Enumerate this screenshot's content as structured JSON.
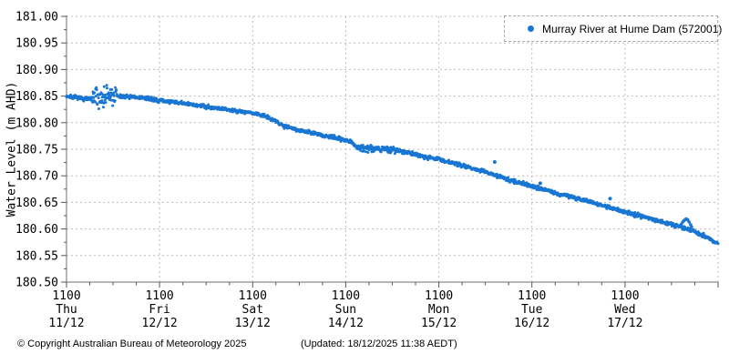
{
  "footer": {
    "copyright": "© Copyright Australian Bureau of Meteorology 2025",
    "updated": "(Updated: 18/12/2025 11:38 AEDT)"
  },
  "colors": {
    "data": "#1976D2",
    "grid": "#bdbdbd",
    "axis": "#6e6e6e",
    "tick": "#555555",
    "text": "#000000"
  },
  "chart_data": {
    "type": "scatter",
    "title": "",
    "ylabel": "Water Level (m AHD)",
    "xlabel": "",
    "grid": true,
    "legend_position": "top-right",
    "ylim": [
      180.5,
      181.0
    ],
    "y_major_step": 0.05,
    "y_minor_step": 0.025,
    "y_tick_labels": [
      "181.00",
      "180.95",
      "180.90",
      "180.85",
      "180.80",
      "180.75",
      "180.70",
      "180.65",
      "180.60",
      "180.55",
      "180.50"
    ],
    "x_axis": {
      "span_days": 7,
      "minor_step_days": 0.25,
      "major_ticks": [
        {
          "time": "1100",
          "day": "Thu",
          "date": "11/12"
        },
        {
          "time": "1100",
          "day": "Fri",
          "date": "12/12"
        },
        {
          "time": "1100",
          "day": "Sat",
          "date": "13/12"
        },
        {
          "time": "1100",
          "day": "Sun",
          "date": "14/12"
        },
        {
          "time": "1100",
          "day": "Mon",
          "date": "15/12"
        },
        {
          "time": "1100",
          "day": "Tue",
          "date": "16/12"
        },
        {
          "time": "1100",
          "day": "Wed",
          "date": "17/12"
        }
      ]
    },
    "series": [
      {
        "name": "Murray River at Hume Dam (572001)",
        "color": "#1976D2",
        "marker": "dot",
        "trend_anchors": [
          [
            0.0,
            180.85
          ],
          [
            0.18,
            180.845
          ],
          [
            0.26,
            180.844
          ],
          [
            0.4,
            180.849
          ],
          [
            0.54,
            180.85
          ],
          [
            0.8,
            180.847
          ],
          [
            1.0,
            180.842
          ],
          [
            1.3,
            180.835
          ],
          [
            1.6,
            180.828
          ],
          [
            2.0,
            180.818
          ],
          [
            2.15,
            180.812
          ],
          [
            2.32,
            180.795
          ],
          [
            2.5,
            180.786
          ],
          [
            2.8,
            180.774
          ],
          [
            3.0,
            180.768
          ],
          [
            3.07,
            180.763
          ],
          [
            3.13,
            180.752
          ],
          [
            3.3,
            180.752
          ],
          [
            3.5,
            180.749
          ],
          [
            3.66,
            180.744
          ],
          [
            3.86,
            180.736
          ],
          [
            4.0,
            180.731
          ],
          [
            4.2,
            180.722
          ],
          [
            4.47,
            180.709
          ],
          [
            4.76,
            180.692
          ],
          [
            5.0,
            180.681
          ],
          [
            5.27,
            180.667
          ],
          [
            5.57,
            180.654
          ],
          [
            5.84,
            180.64
          ],
          [
            6.0,
            180.632
          ],
          [
            6.31,
            180.618
          ],
          [
            6.6,
            180.604
          ],
          [
            6.72,
            180.597
          ],
          [
            6.85,
            180.587
          ],
          [
            7.0,
            180.572
          ]
        ],
        "noise_sigma_default": 0.0018,
        "noise_windows": [
          {
            "from": 0.28,
            "to": 0.54,
            "sigma": 0.011
          },
          {
            "from": 3.13,
            "to": 3.55,
            "sigma": 0.0035
          }
        ],
        "sample_step_days": 0.004,
        "outliers": [
          [
            4.6,
            180.726
          ],
          [
            5.09,
            180.686
          ],
          [
            5.84,
            180.657
          ]
        ],
        "bump_points": [
          [
            6.59,
            180.604
          ],
          [
            6.605,
            180.609
          ],
          [
            6.62,
            180.613
          ],
          [
            6.635,
            180.616
          ],
          [
            6.65,
            180.618
          ],
          [
            6.66,
            180.619
          ],
          [
            6.675,
            180.617
          ],
          [
            6.69,
            180.613
          ],
          [
            6.705,
            180.608
          ],
          [
            6.715,
            180.604
          ]
        ]
      }
    ]
  }
}
